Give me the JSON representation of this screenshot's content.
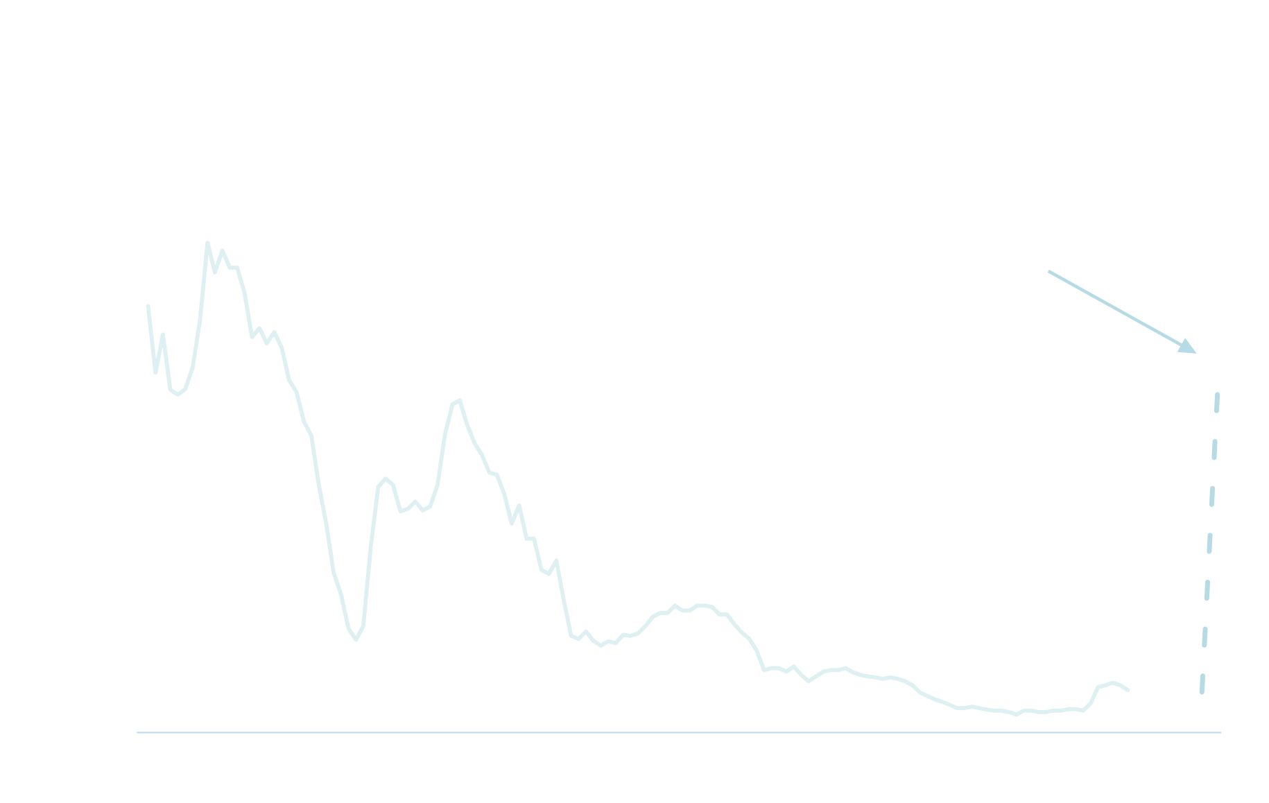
{
  "chart_data": {
    "type": "line",
    "title": "",
    "xlabel": "",
    "ylabel": "",
    "grid": false,
    "legend": "none",
    "ylim": [
      0,
      150
    ],
    "xlim": [
      -1.5,
      145.8
    ],
    "colors": {
      "series": "#dff0f2",
      "projection": "#b7dbe5",
      "arrow": "#b7dbe5",
      "axis": "#c5dcf5"
    },
    "series": [
      {
        "values": [
          87.3,
          73.7,
          81.5,
          70.2,
          69.2,
          70.3,
          74.7,
          84.5,
          100.3,
          94.2,
          98.7,
          95.2,
          95.2,
          90,
          81,
          82.8,
          79.7,
          82,
          78.8,
          72.2,
          69.7,
          63.7,
          60.8,
          50.7,
          42.8,
          32.7,
          28.3,
          21.3,
          19,
          21.8,
          38,
          50.3,
          52,
          50.7,
          45.3,
          45.8,
          47.3,
          45.5,
          46.3,
          50.7,
          61,
          67.2,
          68,
          63,
          59.2,
          56.8,
          53.2,
          52.8,
          48.8,
          42.8,
          46.5,
          39.7,
          39.7,
          33.3,
          32.5,
          35.2,
          27.2,
          19.8,
          19.2,
          20.7,
          18.8,
          17.8,
          18.7,
          18.3,
          20,
          19.8,
          20.3,
          21.8,
          23.7,
          24.5,
          24.5,
          26,
          25,
          25,
          26,
          26,
          25.7,
          24.2,
          24.2,
          22.2,
          20.5,
          19.2,
          16.8,
          12.8,
          13.2,
          13.2,
          12.5,
          13.5,
          11.8,
          10.5,
          11.5,
          12.5,
          12.8,
          12.8,
          13.2,
          12.3,
          11.8,
          11.5,
          11.3,
          11,
          11.3,
          11,
          10.5,
          9.7,
          8.2,
          7.5,
          6.8,
          6.3,
          5.7,
          5,
          5,
          5.3,
          5,
          4.7,
          4.5,
          4.5,
          4.2,
          3.7,
          4.5,
          4.5,
          4.2,
          4.2,
          4.5,
          4.5,
          4.8,
          4.8,
          4.5,
          6,
          9.3,
          9.7,
          10.2,
          9.7,
          8.7
        ]
      }
    ],
    "projection": {
      "style": "dashed",
      "points": [
        [
          142,
          8.3
        ],
        [
          144.2,
          72.5
        ]
      ]
    },
    "annotations": [
      {
        "type": "arrow",
        "from": [
          121.3,
          94.5
        ],
        "to": [
          141.3,
          77.6
        ]
      }
    ]
  }
}
